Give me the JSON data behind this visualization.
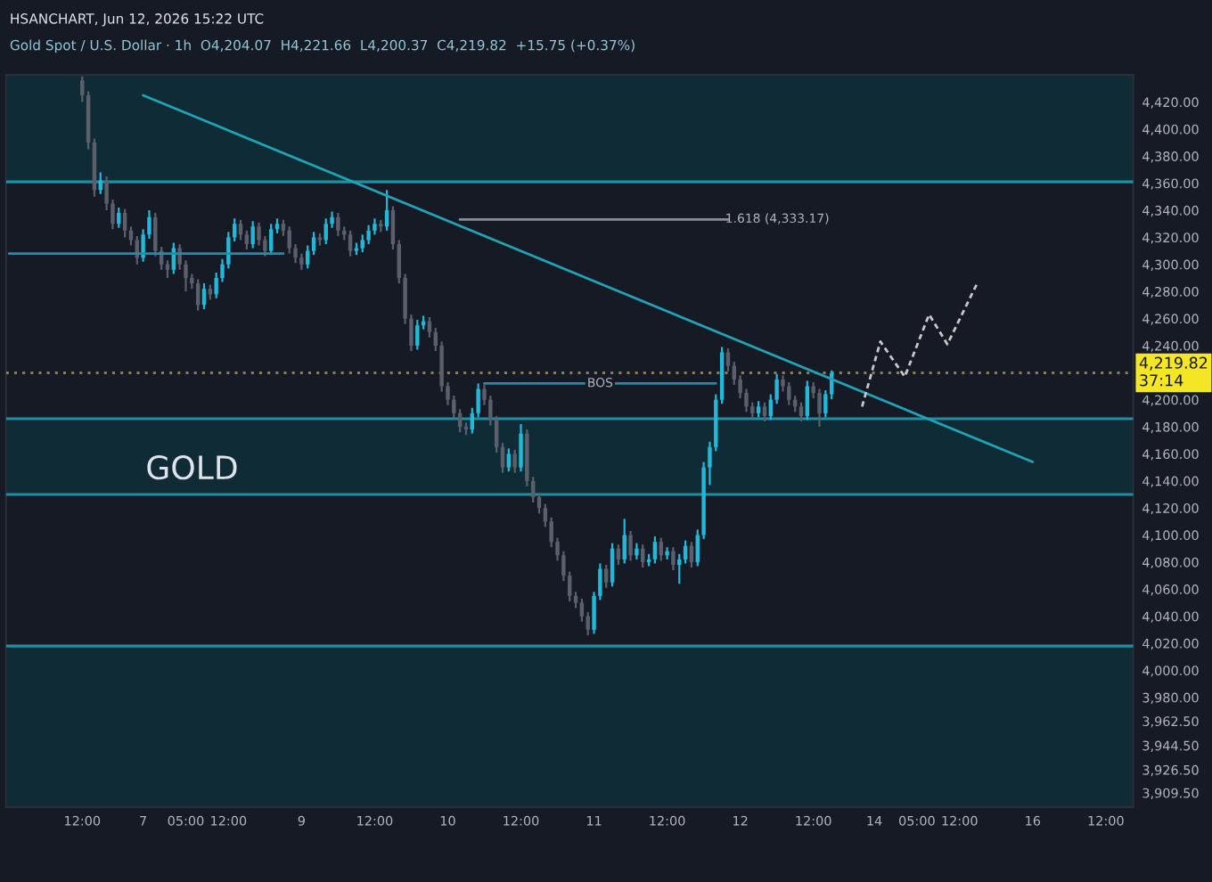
{
  "chart_data": {
    "type": "candlestick",
    "title": "HSANCHART, Jun 12, 2026 15:22 UTC",
    "subtitle": "Gold Spot / U.S. Dollar · 1h  O4,204.07  H4,221.66  L4,200.37  C4,219.82  +15.75 (+0.37%)",
    "categories": [
      null,
      null,
      null,
      null,
      null,
      null,
      null,
      null,
      null,
      null,
      null,
      null,
      "12:00",
      null,
      null,
      null,
      null,
      null,
      null,
      null,
      null,
      null,
      "7",
      null,
      null,
      null,
      null,
      null,
      null,
      "05:00",
      null,
      null,
      null,
      null,
      null,
      null,
      "12:00",
      null,
      null,
      null,
      null,
      null,
      null,
      null,
      null,
      null,
      null,
      null,
      "9",
      null,
      null,
      null,
      null,
      null,
      null,
      null,
      null,
      null,
      null,
      null,
      "12:00",
      null,
      null,
      null,
      null,
      null,
      null,
      null,
      null,
      null,
      null,
      null,
      "10",
      null,
      null,
      null,
      null,
      null,
      null,
      null,
      null,
      null,
      null,
      null,
      "12:00",
      null,
      null,
      null,
      null,
      null,
      null,
      null,
      null,
      null,
      null,
      null,
      "11",
      null,
      null,
      null,
      null,
      null,
      null,
      null,
      null,
      null,
      null,
      null,
      "12:00",
      null,
      null,
      null,
      null,
      null,
      null,
      null,
      null,
      null,
      null,
      null,
      "12",
      null,
      null,
      null,
      null,
      null,
      null,
      null,
      null,
      null,
      null,
      null,
      "12:00",
      null,
      null,
      null,
      null,
      null,
      null,
      null,
      null,
      null,
      "14",
      null,
      null,
      null,
      null,
      null,
      null,
      "05:00",
      null,
      null,
      null,
      null,
      null,
      null,
      "12:00",
      null,
      null,
      null,
      null,
      null,
      null,
      null,
      null,
      null,
      null,
      null,
      "16",
      null,
      null,
      null,
      null,
      null,
      null,
      null,
      null,
      null,
      null,
      null,
      "12:00",
      null,
      null,
      null,
      null
    ],
    "ylim": [
      3899,
      4440
    ],
    "yticks": [
      {
        "value": 3909.5,
        "label": "3,909.50"
      },
      {
        "value": 3926.5,
        "label": "3,926.50"
      },
      {
        "value": 3944.5,
        "label": "3,944.50"
      },
      {
        "value": 3962.5,
        "label": "3,962.50"
      },
      {
        "value": 3980,
        "label": "3,980.00"
      },
      {
        "value": 4000,
        "label": "4,000.00"
      },
      {
        "value": 4020,
        "label": "4,020.00"
      },
      {
        "value": 4040,
        "label": "4,040.00"
      },
      {
        "value": 4060,
        "label": "4,060.00"
      },
      {
        "value": 4080,
        "label": "4,080.00"
      },
      {
        "value": 4100,
        "label": "4,100.00"
      },
      {
        "value": 4120,
        "label": "4,120.00"
      },
      {
        "value": 4140,
        "label": "4,140.00"
      },
      {
        "value": 4160,
        "label": "4,160.00"
      },
      {
        "value": 4180,
        "label": "4,180.00"
      },
      {
        "value": 4200,
        "label": "4,200.00"
      },
      {
        "value": 4240,
        "label": "4,240.00"
      },
      {
        "value": 4260,
        "label": "4,260.00"
      },
      {
        "value": 4280,
        "label": "4,280.00"
      },
      {
        "value": 4300,
        "label": "4,300.00"
      },
      {
        "value": 4320,
        "label": "4,320.00"
      },
      {
        "value": 4340,
        "label": "4,340.00"
      },
      {
        "value": 4360,
        "label": "4,360.00"
      },
      {
        "value": 4380,
        "label": "4,380.00"
      },
      {
        "value": 4400,
        "label": "4,400.00"
      },
      {
        "value": 4420,
        "label": "4,420.00"
      }
    ],
    "grid": false,
    "legend": false,
    "bands": [
      {
        "axis": "y",
        "from": 4361,
        "to": 4440,
        "color": "#0f2b36"
      },
      {
        "axis": "y",
        "from": 4130,
        "to": 4186,
        "color": "#0f2b36"
      },
      {
        "axis": "y",
        "from": 3899,
        "to": 4018,
        "color": "#0f2b36"
      }
    ],
    "ref_lines": [
      {
        "axis": "y",
        "value": 4219.82,
        "label": "4,219.82\n37:14",
        "color": "#8a8050",
        "line_style": "dotted"
      },
      {
        "axis": "y",
        "value": 4361,
        "color": "#1f8fa3",
        "line_style": "solid"
      },
      {
        "axis": "y",
        "value": 4186,
        "color": "#1f8fa3",
        "line_style": "solid"
      },
      {
        "axis": "y",
        "value": 4130,
        "color": "#1f8fa3",
        "line_style": "solid"
      },
      {
        "axis": "y",
        "value": 4018,
        "color": "#1f8fa3",
        "line_style": "solid"
      }
    ],
    "annotations": [
      "GOLD",
      "1.618 (4,333.17)",
      {
        "text": "BOS",
        "y": 4212
      }
    ],
    "series": [
      {
        "colors": [
          null,
          null,
          null,
          null,
          null,
          null,
          null,
          null,
          null,
          null,
          null,
          null,
          "#5b5f6b",
          "#5b5f6b",
          "#5b5f6b",
          "#22b8d8",
          "#5b5f6b",
          "#5b5f6b",
          "#22b8d8",
          "#5b5f6b",
          "#5b5f6b",
          "#5b5f6b",
          "#22b8d8",
          "#22b8d8",
          "#5b5f6b",
          "#5b5f6b",
          "#5b5f6b",
          "#22b8d8",
          "#5b5f6b",
          "#5b5f6b",
          "#5b5f6b",
          "#5b5f6b",
          "#22b8d8",
          "#5b5f6b",
          "#22b8d8",
          "#22b8d8",
          "#22b8d8",
          "#22b8d8",
          "#5b5f6b",
          "#5b5f6b",
          "#22b8d8",
          "#5b5f6b",
          "#5b5f6b",
          "#22b8d8",
          "#22b8d8",
          "#5b5f6b",
          "#5b5f6b",
          "#5b5f6b",
          "#5b5f6b",
          "#22b8d8",
          "#22b8d8",
          "#5b5f6b",
          "#22b8d8",
          "#22b8d8",
          "#5b5f6b",
          "#5b5f6b",
          "#5b5f6b",
          "#22b8d8",
          "#22b8d8",
          "#22b8d8",
          "#22b8d8",
          "#5b5f6b",
          "#22b8d8",
          "#5b5f6b",
          "#5b5f6b",
          "#5b5f6b",
          "#5b5f6b",
          "#22b8d8",
          "#22b8d8",
          "#5b5f6b",
          "#5b5f6b",
          "#5b5f6b",
          "#5b5f6b",
          "#5b5f6b",
          "#5b5f6b",
          "#5b5f6b",
          "#22b8d8",
          "#22b8d8",
          "#5b5f6b",
          "#5b5f6b",
          "#5b5f6b",
          "#5b5f6b",
          "#22b8d8",
          "#5b5f6b",
          "#22b8d8",
          "#5b5f6b",
          "#5b5f6b",
          "#5b5f6b",
          "#5b5f6b",
          "#5b5f6b",
          "#5b5f6b",
          "#5b5f6b",
          "#5b5f6b",
          "#5b5f6b",
          "#5b5f6b",
          "#5b5f6b",
          "#22b8d8",
          "#22b8d8",
          "#5b5f6b",
          "#22b8d8",
          "#5b5f6b",
          "#22b8d8",
          "#5b5f6b",
          "#22b8d8",
          "#5b5f6b",
          "#22b8d8",
          "#22b8d8",
          "#5b5f6b",
          "#22b8d8",
          "#5b5f6b",
          "#22b8d8",
          "#22b8d8",
          "#5b5f6b",
          "#22b8d8",
          "#22b8d8",
          "#22b8d8",
          "#22b8d8",
          "#22b8d8",
          "#5b5f6b",
          "#5b5f6b",
          "#5b5f6b",
          "#5b5f6b",
          "#5b5f6b",
          "#22b8d8",
          "#5b5f6b",
          "#22b8d8",
          "#22b8d8",
          "#5b5f6b",
          "#5b5f6b",
          "#5b5f6b",
          "#5b5f6b",
          "#22b8d8",
          "#5b5f6b",
          "#5b5f6b",
          "#22b8d8",
          "#22b8d8",
          null,
          null,
          null,
          null,
          null,
          null,
          null,
          null,
          null,
          null,
          null,
          null,
          null,
          null,
          null,
          null,
          null,
          null,
          null,
          null,
          null,
          null,
          null,
          null,
          null,
          null,
          null,
          null,
          null,
          null,
          null,
          null,
          null,
          null,
          null,
          null,
          null,
          null,
          null,
          null,
          null,
          null,
          null,
          null,
          null,
          null,
          null,
          null,
          null
        ],
        "ohlc": [
          null,
          null,
          null,
          null,
          null,
          null,
          null,
          null,
          null,
          null,
          null,
          null,
          [
            4436,
            4439,
            4420,
            4425
          ],
          [
            4425,
            4428,
            4385,
            4390
          ],
          [
            4390,
            4393,
            4350,
            4355
          ],
          [
            4355,
            4368,
            4352,
            4362
          ],
          [
            4362,
            4365,
            4340,
            4345
          ],
          [
            4345,
            4348,
            4326,
            4330
          ],
          [
            4330,
            4342,
            4327,
            4338
          ],
          [
            4338,
            4341,
            4320,
            4325
          ],
          [
            4325,
            4328,
            4314,
            4318
          ],
          [
            4318,
            4321,
            4300,
            4305
          ],
          [
            4305,
            4326,
            4302,
            4322
          ],
          [
            4322,
            4340,
            4319,
            4335
          ],
          [
            4335,
            4338,
            4306,
            4310
          ],
          [
            4310,
            4313,
            4296,
            4300
          ],
          [
            4300,
            4303,
            4290,
            4296
          ],
          [
            4296,
            4316,
            4293,
            4312
          ],
          [
            4312,
            4315,
            4296,
            4300
          ],
          [
            4300,
            4303,
            4280,
            4290
          ],
          [
            4290,
            4293,
            4282,
            4286
          ],
          [
            4286,
            4289,
            4266,
            4270
          ],
          [
            4270,
            4286,
            4267,
            4282
          ],
          [
            4282,
            4285,
            4274,
            4278
          ],
          [
            4278,
            4294,
            4275,
            4290
          ],
          [
            4290,
            4304,
            4287,
            4300
          ],
          [
            4300,
            4324,
            4297,
            4320
          ],
          [
            4320,
            4334,
            4317,
            4330
          ],
          [
            4330,
            4333,
            4318,
            4322
          ],
          [
            4322,
            4325,
            4311,
            4315
          ],
          [
            4315,
            4332,
            4312,
            4328
          ],
          [
            4328,
            4331,
            4314,
            4318
          ],
          [
            4318,
            4321,
            4306,
            4310
          ],
          [
            4310,
            4330,
            4307,
            4326
          ],
          [
            4326,
            4334,
            4323,
            4330
          ],
          [
            4330,
            4333,
            4321,
            4325
          ],
          [
            4325,
            4328,
            4308,
            4312
          ],
          [
            4312,
            4315,
            4301,
            4305
          ],
          [
            4305,
            4308,
            4296,
            4300
          ],
          [
            4300,
            4314,
            4297,
            4310
          ],
          [
            4310,
            4324,
            4307,
            4320
          ],
          [
            4320,
            4323,
            4314,
            4318
          ],
          [
            4318,
            4334,
            4315,
            4330
          ],
          [
            4330,
            4339,
            4327,
            4335
          ],
          [
            4335,
            4338,
            4321,
            4325
          ],
          [
            4325,
            4328,
            4318,
            4322
          ],
          [
            4322,
            4325,
            4306,
            4310
          ],
          [
            4310,
            4316,
            4307,
            4312
          ],
          [
            4312,
            4322,
            4309,
            4318
          ],
          [
            4318,
            4329,
            4315,
            4325
          ],
          [
            4325,
            4334,
            4322,
            4330
          ],
          [
            4330,
            4333,
            4324,
            4328
          ],
          [
            4328,
            4355,
            4325,
            4340
          ],
          [
            4340,
            4343,
            4311,
            4315
          ],
          [
            4315,
            4318,
            4286,
            4290
          ],
          [
            4290,
            4293,
            4256,
            4260
          ],
          [
            4260,
            4263,
            4236,
            4240
          ],
          [
            4240,
            4259,
            4237,
            4255
          ],
          [
            4255,
            4262,
            4252,
            4258
          ],
          [
            4258,
            4261,
            4246,
            4250
          ],
          [
            4250,
            4253,
            4236,
            4240
          ],
          [
            4240,
            4243,
            4206,
            4210
          ],
          [
            4210,
            4213,
            4196,
            4200
          ],
          [
            4200,
            4203,
            4186,
            4190
          ],
          [
            4190,
            4193,
            4176,
            4180
          ],
          [
            4180,
            4183,
            4174,
            4178
          ],
          [
            4178,
            4194,
            4175,
            4190
          ],
          [
            4190,
            4212,
            4187,
            4208
          ],
          [
            4208,
            4211,
            4196,
            4200
          ],
          [
            4200,
            4203,
            4181,
            4185
          ],
          [
            4185,
            4188,
            4161,
            4165
          ],
          [
            4165,
            4168,
            4146,
            4150
          ],
          [
            4150,
            4164,
            4147,
            4160
          ],
          [
            4160,
            4163,
            4146,
            4150
          ],
          [
            4150,
            4182,
            4147,
            4175
          ],
          [
            4175,
            4178,
            4136,
            4140
          ],
          [
            4140,
            4143,
            4124,
            4128
          ],
          [
            4128,
            4131,
            4116,
            4120
          ],
          [
            4120,
            4123,
            4106,
            4110
          ],
          [
            4110,
            4113,
            4091,
            4095
          ],
          [
            4095,
            4098,
            4081,
            4085
          ],
          [
            4085,
            4088,
            4066,
            4070
          ],
          [
            4070,
            4073,
            4051,
            4055
          ],
          [
            4055,
            4058,
            4046,
            4050
          ],
          [
            4050,
            4053,
            4036,
            4040
          ],
          [
            4040,
            4043,
            4026,
            4030
          ],
          [
            4030,
            4058,
            4027,
            4055
          ],
          [
            4055,
            4079,
            4052,
            4075
          ],
          [
            4075,
            4078,
            4061,
            4065
          ],
          [
            4065,
            4094,
            4062,
            4090
          ],
          [
            4090,
            4093,
            4078,
            4082
          ],
          [
            4082,
            4112,
            4079,
            4100
          ],
          [
            4100,
            4103,
            4081,
            4085
          ],
          [
            4085,
            4094,
            4082,
            4090
          ],
          [
            4090,
            4093,
            4076,
            4080
          ],
          [
            4080,
            4086,
            4077,
            4082
          ],
          [
            4082,
            4099,
            4079,
            4095
          ],
          [
            4095,
            4098,
            4081,
            4085
          ],
          [
            4085,
            4091,
            4082,
            4088
          ],
          [
            4088,
            4091,
            4074,
            4078
          ],
          [
            4078,
            4086,
            4064,
            4082
          ],
          [
            4082,
            4096,
            4079,
            4092
          ],
          [
            4092,
            4095,
            4076,
            4080
          ],
          [
            4080,
            4104,
            4077,
            4100
          ],
          [
            4100,
            4154,
            4097,
            4150
          ],
          [
            4150,
            4169,
            4137,
            4165
          ],
          [
            4165,
            4204,
            4162,
            4200
          ],
          [
            4200,
            4239,
            4197,
            4235
          ],
          [
            4235,
            4238,
            4221,
            4225
          ],
          [
            4225,
            4228,
            4211,
            4215
          ],
          [
            4215,
            4218,
            4201,
            4205
          ],
          [
            4205,
            4208,
            4191,
            4195
          ],
          [
            4195,
            4198,
            4186,
            4190
          ],
          [
            4190,
            4199,
            4187,
            4195
          ],
          [
            4195,
            4198,
            4184,
            4188
          ],
          [
            4188,
            4204,
            4185,
            4200
          ],
          [
            4200,
            4219,
            4197,
            4215
          ],
          [
            4215,
            4218,
            4206,
            4210
          ],
          [
            4210,
            4213,
            4196,
            4200
          ],
          [
            4200,
            4203,
            4191,
            4195
          ],
          [
            4195,
            4198,
            4184,
            4188
          ],
          [
            4188,
            4214,
            4185,
            4210
          ],
          [
            4210,
            4213,
            4201,
            4205
          ],
          [
            4205,
            4208,
            4180,
            4190
          ],
          [
            4190,
            4207,
            4187,
            4204.07
          ],
          [
            4204.07,
            4221.66,
            4200.37,
            4219.82
          ],
          null,
          null,
          null,
          null,
          null,
          null,
          null,
          null,
          null,
          null,
          null,
          null,
          null,
          null,
          null,
          null,
          null,
          null,
          null,
          null,
          null,
          null,
          null,
          null,
          null,
          null,
          null,
          null,
          null,
          null,
          null,
          null,
          null,
          null,
          null,
          null,
          null,
          null,
          null,
          null,
          null,
          null,
          null,
          null,
          null,
          null,
          null,
          null,
          null
        ]
      },
      {
        "type": "line",
        "color": "#1f8fa3",
        "line_style": "solid",
        "values": [
          4308,
          null,
          null,
          null,
          null,
          null,
          null,
          null,
          null,
          null,
          null,
          null,
          null,
          null,
          null,
          null,
          null,
          null,
          null,
          null,
          null,
          null,
          null,
          null,
          null,
          null,
          null,
          null,
          null,
          null,
          null,
          null,
          null,
          null,
          null,
          null,
          null,
          null,
          null,
          null,
          null,
          null,
          null,
          null,
          null,
          4308,
          null,
          null,
          null,
          null,
          null,
          null,
          null,
          null,
          null,
          null,
          null,
          null,
          null,
          null,
          null,
          null,
          null,
          null,
          null,
          null,
          null,
          null,
          null,
          null,
          null,
          null,
          null,
          null,
          null,
          null,
          null,
          null,
          null,
          null,
          null,
          null,
          null,
          null,
          null,
          null,
          null,
          null,
          null,
          null,
          null,
          null,
          null,
          null,
          null,
          null,
          null,
          null,
          null,
          null,
          null,
          null,
          null,
          null,
          null,
          null,
          null,
          null,
          null,
          null,
          null,
          null,
          null,
          null,
          null,
          null,
          null,
          null,
          null,
          null,
          null,
          null,
          null,
          null,
          null,
          null,
          null,
          null,
          null,
          null,
          null,
          null,
          null,
          null,
          null,
          null,
          null,
          null,
          null,
          null,
          null,
          null,
          null,
          null,
          null,
          null,
          null,
          null,
          null,
          null,
          null,
          null,
          null,
          null,
          null,
          null,
          null,
          null,
          null,
          null,
          null,
          null,
          null,
          null,
          null,
          null,
          null,
          null,
          null,
          null,
          null,
          null,
          null,
          null,
          null,
          null,
          null,
          null,
          null,
          null,
          null,
          null,
          null,
          null,
          null
        ]
      },
      {
        "type": "line",
        "color": "#8a8d96",
        "line_style": "solid",
        "values": [
          null,
          null,
          null,
          null,
          null,
          null,
          null,
          null,
          null,
          null,
          null,
          null,
          null,
          null,
          null,
          null,
          null,
          null,
          null,
          null,
          null,
          null,
          null,
          null,
          null,
          null,
          null,
          null,
          null,
          null,
          null,
          null,
          null,
          null,
          null,
          null,
          null,
          null,
          null,
          null,
          null,
          null,
          null,
          null,
          null,
          null,
          null,
          null,
          null,
          null,
          null,
          null,
          null,
          null,
          null,
          null,
          null,
          null,
          null,
          null,
          null,
          null,
          null,
          null,
          null,
          null,
          null,
          null,
          null,
          null,
          null,
          null,
          null,
          null,
          4333.17,
          null,
          null,
          null,
          null,
          null,
          null,
          null,
          null,
          null,
          null,
          null,
          null,
          null,
          null,
          null,
          null,
          null,
          null,
          null,
          null,
          null,
          null,
          null,
          null,
          null,
          null,
          null,
          null,
          null,
          null,
          null,
          null,
          null,
          null,
          null,
          null,
          null,
          null,
          null,
          null,
          null,
          null,
          null,
          4333.17,
          null,
          null,
          null,
          null,
          null,
          null,
          null,
          null,
          null,
          null,
          null,
          null,
          null,
          null,
          null,
          null,
          null,
          null,
          null,
          null,
          null,
          null,
          null,
          null,
          null,
          null,
          null,
          null,
          null,
          null,
          null,
          null,
          null,
          null,
          null,
          null,
          null,
          null,
          null,
          null,
          null,
          null,
          null,
          null,
          null,
          null,
          null,
          null,
          null,
          null,
          null,
          null,
          null,
          null,
          null,
          null,
          null,
          null,
          null,
          null,
          null,
          null,
          null,
          null,
          null,
          null
        ]
      },
      {
        "type": "line",
        "color": "#1f8fa3",
        "line_style": "solid",
        "values": [
          null,
          null,
          null,
          null,
          null,
          null,
          null,
          null,
          null,
          null,
          null,
          null,
          null,
          null,
          null,
          null,
          null,
          null,
          null,
          null,
          null,
          null,
          null,
          null,
          null,
          null,
          null,
          null,
          null,
          null,
          null,
          null,
          null,
          null,
          null,
          null,
          null,
          null,
          null,
          null,
          null,
          null,
          null,
          null,
          null,
          null,
          null,
          null,
          null,
          null,
          null,
          null,
          null,
          null,
          null,
          null,
          null,
          null,
          null,
          null,
          null,
          null,
          null,
          null,
          null,
          null,
          null,
          null,
          null,
          null,
          null,
          null,
          null,
          null,
          null,
          null,
          null,
          null,
          4212,
          null,
          null,
          null,
          null,
          null,
          null,
          null,
          null,
          null,
          null,
          null,
          null,
          null,
          null,
          null,
          null,
          null,
          null,
          null,
          null,
          null,
          null,
          null,
          null,
          null,
          null,
          null,
          null,
          null,
          null,
          null,
          null,
          null,
          null,
          null,
          null,
          null,
          4212,
          null,
          null,
          null,
          null,
          null,
          null,
          null,
          null,
          null,
          null,
          null,
          null,
          null,
          null,
          null,
          null,
          null,
          null,
          null,
          null,
          null,
          null,
          null,
          null,
          null,
          null,
          null,
          null,
          null,
          null,
          null,
          null,
          null,
          null,
          null,
          null,
          null,
          null,
          null,
          null,
          null,
          null,
          null,
          null,
          null,
          null,
          null,
          null,
          null,
          null,
          null,
          null,
          null,
          null,
          null,
          null,
          null,
          null,
          null,
          null,
          null,
          null,
          null,
          null,
          null,
          null,
          null,
          null
        ]
      },
      {
        "type": "line",
        "color": "#1fa3b5",
        "line_style": "solid",
        "values": [
          null,
          null,
          null,
          null,
          null,
          null,
          null,
          null,
          null,
          null,
          null,
          null,
          null,
          null,
          null,
          null,
          null,
          null,
          null,
          null,
          null,
          null,
          4425,
          null,
          null,
          null,
          null,
          null,
          null,
          null,
          null,
          null,
          null,
          null,
          null,
          null,
          null,
          null,
          null,
          null,
          null,
          null,
          null,
          null,
          null,
          null,
          null,
          null,
          null,
          null,
          null,
          null,
          null,
          null,
          null,
          null,
          null,
          null,
          null,
          null,
          null,
          null,
          null,
          null,
          null,
          null,
          null,
          null,
          null,
          null,
          null,
          null,
          null,
          null,
          null,
          null,
          null,
          null,
          null,
          null,
          null,
          null,
          null,
          null,
          null,
          null,
          null,
          null,
          null,
          null,
          null,
          null,
          null,
          null,
          null,
          null,
          null,
          null,
          null,
          null,
          null,
          null,
          null,
          null,
          null,
          null,
          null,
          null,
          null,
          null,
          null,
          null,
          null,
          null,
          null,
          null,
          null,
          null,
          null,
          null,
          null,
          null,
          null,
          null,
          null,
          null,
          null,
          null,
          null,
          null,
          null,
          null,
          null,
          null,
          null,
          null,
          null,
          null,
          null,
          null,
          null,
          null,
          null,
          null,
          null,
          null,
          null,
          null,
          null,
          null,
          null,
          null,
          null,
          null,
          null,
          null,
          null,
          null,
          null,
          null,
          null,
          null,
          null,
          null,
          null,
          null,
          null,
          null,
          4154,
          null,
          null,
          null,
          null,
          null,
          null,
          null,
          null,
          null,
          null,
          null,
          null,
          null,
          null,
          null,
          null
        ]
      },
      {
        "type": "line",
        "color": "#c8c8c8",
        "line_style": "dashed",
        "values": [
          null,
          null,
          null,
          null,
          null,
          null,
          null,
          null,
          null,
          null,
          null,
          null,
          null,
          null,
          null,
          null,
          null,
          null,
          null,
          null,
          null,
          null,
          null,
          null,
          null,
          null,
          null,
          null,
          null,
          null,
          null,
          null,
          null,
          null,
          null,
          null,
          null,
          null,
          null,
          null,
          null,
          null,
          null,
          null,
          null,
          null,
          null,
          null,
          null,
          null,
          null,
          null,
          null,
          null,
          null,
          null,
          null,
          null,
          null,
          null,
          null,
          null,
          null,
          null,
          null,
          null,
          null,
          null,
          null,
          null,
          null,
          null,
          null,
          null,
          null,
          null,
          null,
          null,
          null,
          null,
          null,
          null,
          null,
          null,
          null,
          null,
          null,
          null,
          null,
          null,
          null,
          null,
          null,
          null,
          null,
          null,
          null,
          null,
          null,
          null,
          null,
          null,
          null,
          null,
          null,
          null,
          null,
          null,
          null,
          null,
          null,
          null,
          null,
          null,
          null,
          null,
          null,
          null,
          null,
          null,
          null,
          null,
          null,
          null,
          null,
          null,
          null,
          null,
          null,
          null,
          null,
          null,
          null,
          null,
          null,
          null,
          null,
          null,
          null,
          null,
          4195,
          null,
          null,
          4243,
          null,
          null,
          null,
          4217,
          null,
          null,
          null,
          4263,
          null,
          null,
          4241,
          null,
          null,
          null,
          null,
          4287,
          null,
          null,
          null,
          null,
          null,
          null,
          null,
          null,
          null,
          null,
          null,
          null,
          null,
          null,
          null,
          null,
          null,
          null,
          null,
          null,
          null,
          null,
          null,
          null,
          null
        ]
      }
    ]
  }
}
